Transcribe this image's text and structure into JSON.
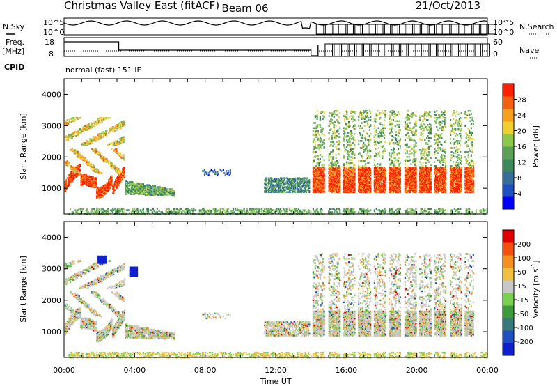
{
  "header": {
    "station": "Christmas Valley East (fitACF)",
    "beam": "Beam 06",
    "date": "21/Oct/2013",
    "nsky_label": "N.Sky",
    "nsearch_label": "N.Search",
    "freq_label": "Freq.",
    "freq_unit": "[MHz]",
    "nave_label": "Nave",
    "cpid_label": "CPID",
    "cpid_text": "normal (fast) 151 IF"
  },
  "chart_data": [
    {
      "type": "line",
      "name": "noise",
      "left_ticks": [
        "10^5",
        "10^0"
      ],
      "right_ticks": [
        "10^5",
        "10^0"
      ]
    },
    {
      "type": "line",
      "name": "frequency-nave",
      "left_ticks": [
        "18",
        "8"
      ],
      "right_ticks": [
        "60",
        "0"
      ]
    },
    {
      "type": "heatmap",
      "name": "power",
      "ylabel": "Slant Range [km]",
      "ylim": [
        180,
        4500
      ],
      "yticks": [
        1000,
        2000,
        3000,
        4000
      ],
      "xlim": [
        "00:00",
        "24:00"
      ],
      "colorbar": {
        "label": "Power [dB]",
        "ticks": [
          "4",
          "8",
          "12",
          "16",
          "20",
          "24",
          "28"
        ],
        "colors": [
          "#0000ff",
          "#2050c0",
          "#3a6e9a",
          "#3d8a5a",
          "#5aa25a",
          "#8cc84b",
          "#f0d030",
          "#f7a020",
          "#f46010",
          "#ff2000"
        ]
      }
    },
    {
      "type": "heatmap",
      "name": "velocity",
      "ylabel": "Slant Range [km]",
      "ylim": [
        180,
        4500
      ],
      "yticks": [
        1000,
        2000,
        3000,
        4000
      ],
      "xlim": [
        "00:00",
        "24:00"
      ],
      "xticks": [
        "00:00",
        "04:00",
        "08:00",
        "12:00",
        "16:00",
        "20:00",
        "00:00"
      ],
      "xlabel": "Time UT",
      "colorbar": {
        "label": "Velocity [m s",
        "label_sup": "-1",
        "label_end": "]",
        "ticks": [
          "200",
          "100",
          "50",
          "15",
          "-15",
          "-50",
          "-100",
          "-200"
        ],
        "colors": [
          "#1020d0",
          "#2050c0",
          "#3a7a7a",
          "#3d9a3d",
          "#7ad050",
          "#c8c8c8",
          "#f0c040",
          "#f59020",
          "#f45010",
          "#e00000"
        ]
      }
    }
  ]
}
